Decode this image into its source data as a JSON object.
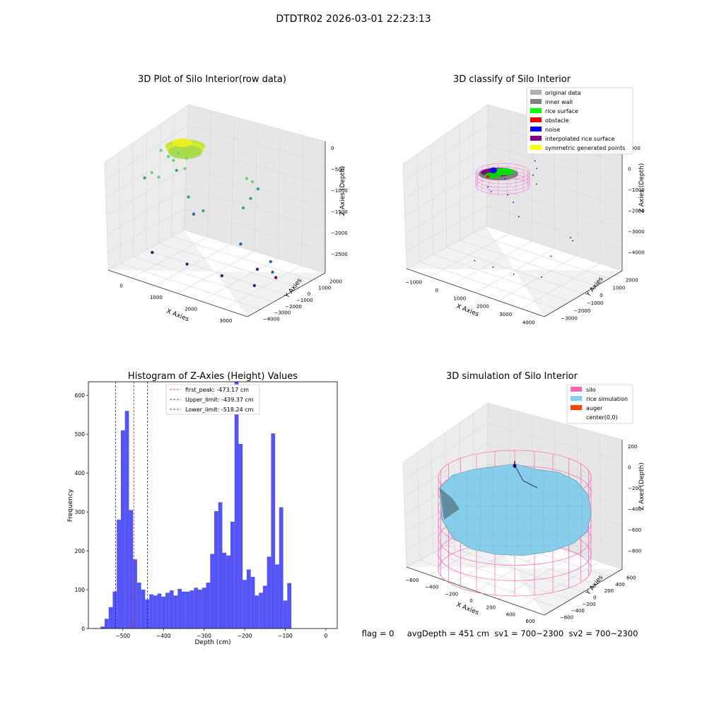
{
  "suptitle": "DTDTR02 2026-03-01 22:23:13",
  "status_line": "flag = 0     avgDepth = 451 cm  sv1 = 700~2300  sv2 = 700~2300",
  "colors": {
    "hist_bar": "#4b4bf7",
    "peak_line": "#e02020",
    "limit_line": "#1a1aaa",
    "silo": "#ff69b4",
    "rice_sim": "#87ceeb",
    "auger": "#ff4500"
  },
  "chart_data": [
    {
      "type": "scatter",
      "title": "3D Plot of Silo Interior(row data)",
      "xlabel": "X Axies",
      "ylabel": "Y Axies",
      "zlabel": "Z Axies (Depth)",
      "xticks": [
        "0",
        "1000",
        "2000",
        "3000"
      ],
      "yticks": [
        "2000",
        "1000",
        "0",
        "−1000",
        "−2000",
        "−3000",
        "−4000"
      ],
      "zticks": [
        "0",
        "−500",
        "−1000",
        "−1500",
        "−2000",
        "−2500"
      ],
      "xlim": [
        -500,
        3500
      ],
      "ylim": [
        -4000,
        2500
      ],
      "zlim": [
        -2800,
        100
      ],
      "points": [
        {
          "x": -300,
          "y": -500,
          "z": -520
        },
        {
          "x": -150,
          "y": -300,
          "z": -650
        },
        {
          "x": 100,
          "y": -200,
          "z": -520
        },
        {
          "x": 300,
          "y": -100,
          "z": -600
        },
        {
          "x": 0,
          "y": -300,
          "z": -700
        },
        {
          "x": 200,
          "y": 100,
          "z": -900
        },
        {
          "x": -400,
          "y": -900,
          "z": -1000
        },
        {
          "x": -200,
          "y": -900,
          "z": -1050
        },
        {
          "x": -500,
          "y": -1200,
          "z": -1100
        },
        {
          "x": -300,
          "y": 900,
          "z": -1200
        },
        {
          "x": 500,
          "y": -400,
          "z": -1400
        },
        {
          "x": 1500,
          "y": 1500,
          "z": -1000
        },
        {
          "x": 1700,
          "y": 1400,
          "z": -1000
        },
        {
          "x": 1900,
          "y": 1300,
          "z": -1100
        },
        {
          "x": 1800,
          "y": 1000,
          "z": -1300
        },
        {
          "x": 1700,
          "y": 700,
          "z": -1500
        },
        {
          "x": 800,
          "y": 0,
          "z": -1700
        },
        {
          "x": 600,
          "y": -200,
          "z": -1800
        },
        {
          "x": 3100,
          "y": -1000,
          "z": -2100
        },
        {
          "x": 3200,
          "y": -1100,
          "z": -2300
        },
        {
          "x": 3300,
          "y": -1100,
          "z": -2400
        },
        {
          "x": 2000,
          "y": -300,
          "z": -2100
        },
        {
          "x": 2700,
          "y": -900,
          "z": -2400
        },
        {
          "x": 0,
          "y": -1800,
          "z": -2600
        },
        {
          "x": 1000,
          "y": -1800,
          "z": -2600
        },
        {
          "x": 2000,
          "y": -1800,
          "z": -2600
        },
        {
          "x": 2900,
          "y": -1700,
          "z": -2600
        }
      ]
    },
    {
      "type": "scatter",
      "title": "3D classify of Silo Interior",
      "xlabel": "X Axies",
      "ylabel": "Y Axies",
      "zlabel": "Z Axies (Depth)",
      "xticks": [
        "−1000",
        "0",
        "1000",
        "2000",
        "3000",
        "4000"
      ],
      "yticks": [
        "2000",
        "1000",
        "0",
        "−1000",
        "−2000",
        "−3000"
      ],
      "zticks": [
        "1000",
        "0",
        "−1000",
        "−2000",
        "−3000",
        "−4000"
      ],
      "xlim": [
        -1500,
        4500
      ],
      "ylim": [
        -3500,
        2500
      ],
      "zlim": [
        -4500,
        1000
      ],
      "legend_location": "upper right",
      "legend": [
        {
          "label": "original data",
          "color": "#b0b0b0"
        },
        {
          "label": "inner wall",
          "color": "#808080"
        },
        {
          "label": "rice surface",
          "color": "#00ff00"
        },
        {
          "label": "obstacle",
          "color": "#ff0000"
        },
        {
          "label": "noise",
          "color": "#0000ff"
        },
        {
          "label": "interpolated rice surface",
          "color": "#800080"
        },
        {
          "label": "symmetric generated points",
          "color": "#ffff00"
        }
      ],
      "noise_points": [
        {
          "x": 1500,
          "y": 1000,
          "z": -100
        },
        {
          "x": 1700,
          "y": 800,
          "z": -300
        },
        {
          "x": 1600,
          "y": 700,
          "z": -600
        },
        {
          "x": 1800,
          "y": 600,
          "z": -900
        },
        {
          "x": 500,
          "y": 500,
          "z": -1100
        },
        {
          "x": 200,
          "y": -300,
          "z": -1300
        },
        {
          "x": 400,
          "y": -400,
          "z": -1400
        },
        {
          "x": 900,
          "y": 0,
          "z": -1500
        },
        {
          "x": 1200,
          "y": -100,
          "z": -1700
        },
        {
          "x": 1500,
          "y": -200,
          "z": -2200
        },
        {
          "x": 4200,
          "y": -1000,
          "z": -1900
        },
        {
          "x": 4300,
          "y": -1000,
          "z": -2000
        },
        {
          "x": 3300,
          "y": -900,
          "z": -3100
        },
        {
          "x": 500,
          "y": -1800,
          "z": -4000
        },
        {
          "x": 1300,
          "y": -1800,
          "z": -4000
        },
        {
          "x": 2200,
          "y": -1800,
          "z": -4000
        },
        {
          "x": 3300,
          "y": -1600,
          "z": -3800
        }
      ]
    },
    {
      "type": "bar",
      "title": "Histogram of Z-Axies (Height) Values",
      "xlabel": "Depth (cm)",
      "ylabel": "Frequency",
      "xlim": [
        -585,
        28
      ],
      "ylim": [
        0,
        635
      ],
      "xticks": [
        "−500",
        "−400",
        "−300",
        "−200",
        "−100",
        "0"
      ],
      "yticks": [
        "0",
        "100",
        "200",
        "300",
        "400",
        "500",
        "600"
      ],
      "bin_start": -575,
      "bin_width": 10,
      "values": [
        1,
        0,
        5,
        25,
        55,
        95,
        280,
        510,
        560,
        305,
        178,
        118,
        100,
        75,
        88,
        85,
        90,
        82,
        92,
        98,
        85,
        102,
        95,
        95,
        98,
        105,
        100,
        105,
        118,
        192,
        302,
        325,
        195,
        188,
        275,
        640,
        475,
        125,
        152,
        133,
        85,
        92,
        110,
        185,
        502,
        165,
        312,
        72,
        117
      ],
      "vlines": [
        {
          "x": -473.17,
          "label": "first_peak: -473.17 cm",
          "color": "#e02020"
        },
        {
          "x": -439.37,
          "label": "Upper_limit: -439.37 cm",
          "color": "#1a1aaa"
        },
        {
          "x": -518.24,
          "label": "Lower_limit: -518.24 cm",
          "color": "#1a1aaa"
        }
      ],
      "legend_location": "upper center"
    },
    {
      "type": "area",
      "title": "3D simulation of Silo Interior",
      "xlabel": "X Axies",
      "ylabel": "Y Axies",
      "zlabel": "Z Axes (Depth)",
      "xticks": [
        "−600",
        "−400",
        "−200",
        "0",
        "200",
        "400",
        "600"
      ],
      "yticks": [
        "600",
        "400",
        "200",
        "0",
        "−200",
        "−400",
        "−600"
      ],
      "zticks": [
        "200",
        "0",
        "−200",
        "−400",
        "−600",
        "−800"
      ],
      "xlim": [
        -700,
        700
      ],
      "ylim": [
        -700,
        700
      ],
      "zlim": [
        -950,
        350
      ],
      "legend_location": "upper right",
      "legend": [
        {
          "label": "silo",
          "color": "#ff69b4"
        },
        {
          "label": "rice simulation",
          "color": "#87ceeb"
        },
        {
          "label": "auger",
          "color": "#ff4500"
        },
        {
          "label": "center(0,0)",
          "color": ""
        }
      ]
    }
  ]
}
